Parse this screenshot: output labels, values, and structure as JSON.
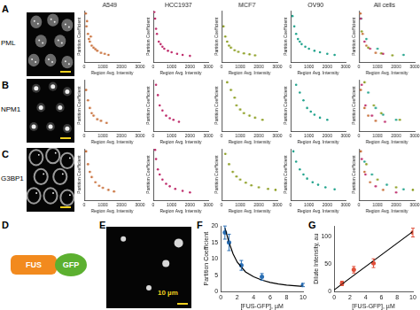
{
  "panel_labels": [
    "A",
    "B",
    "C",
    "D",
    "E",
    "F",
    "G"
  ],
  "rows": [
    {
      "label": "PML"
    },
    {
      "label": "NPM1"
    },
    {
      "label": "G3BP1"
    }
  ],
  "construct": [
    "FUS",
    "GFP"
  ],
  "scale_bar": "10 µm",
  "chart_data": [
    {
      "type": "scatter",
      "title": "A549",
      "x_label": "Region Avg. Intensity",
      "y_label": "Partition Coefficient",
      "xlim": [
        0,
        3000
      ],
      "xticks": [
        0,
        1000,
        2000,
        3000
      ],
      "ylim": [
        0,
        10
      ],
      "tick_labels": "x",
      "grid": false,
      "series": [
        {
          "color": "#c9713c",
          "x": [
            80,
            120,
            150,
            200,
            250,
            300,
            350,
            400,
            500,
            600,
            700,
            900,
            1100,
            1300
          ],
          "values": [
            9.5,
            7,
            8,
            5.5,
            4.5,
            4,
            5,
            3.2,
            2.8,
            2.5,
            2.2,
            1.8,
            1.6,
            1.4
          ]
        }
      ]
    },
    {
      "type": "scatter",
      "title": "HCC1937",
      "x_label": "Region Avg. Intensity",
      "y_label": "Partition Coefficient",
      "xlim": [
        0,
        3000
      ],
      "xticks": [
        0,
        1000,
        2000,
        3000
      ],
      "ylim": [
        0,
        10
      ],
      "tick_labels": "x",
      "grid": false,
      "series": [
        {
          "color": "#c0306e",
          "x": [
            60,
            100,
            150,
            200,
            300,
            400,
            500,
            600,
            800,
            1000,
            1300,
            1600,
            2000
          ],
          "values": [
            9.8,
            8.5,
            6.5,
            5.5,
            4,
            3.5,
            3,
            2.6,
            2.2,
            1.9,
            1.6,
            1.4,
            1.2
          ]
        }
      ]
    },
    {
      "type": "scatter",
      "title": "MCF7",
      "x_label": "Region Avg. Intensity",
      "y_label": "Partition Coefficient",
      "xlim": [
        0,
        3000
      ],
      "xticks": [
        0,
        1000,
        2000,
        3000
      ],
      "ylim": [
        0,
        10
      ],
      "tick_labels": "x",
      "grid": false,
      "series": [
        {
          "color": "#8c9e22",
          "x": [
            100,
            200,
            300,
            400,
            500,
            700,
            900,
            1200,
            1500,
            1800
          ],
          "values": [
            7,
            5,
            4,
            3.2,
            2.8,
            2.3,
            2,
            1.7,
            1.5,
            1.3
          ]
        }
      ]
    },
    {
      "type": "scatter",
      "title": "OV90",
      "x_label": "Region Avg. Intensity",
      "y_label": "Partition Coefficient",
      "xlim": [
        0,
        3000
      ],
      "xticks": [
        0,
        1000,
        2000,
        3000
      ],
      "ylim": [
        0,
        10
      ],
      "tick_labels": "x",
      "grid": false,
      "series": [
        {
          "color": "#24a48e",
          "x": [
            100,
            200,
            300,
            400,
            500,
            600,
            800,
            1000,
            1300,
            1600,
            2000,
            2400
          ],
          "values": [
            9,
            7,
            5.5,
            4.5,
            4,
            3.5,
            3,
            2.6,
            2.2,
            1.9,
            1.6,
            1.4
          ]
        }
      ]
    },
    {
      "type": "scatter",
      "title": "All cells",
      "x_label": "Region Avg. Intensity",
      "y_label": "Partition Coefficient",
      "xlim": [
        0,
        3000
      ],
      "xticks": [
        0,
        1000,
        2000,
        3000
      ],
      "ylim": [
        0,
        10
      ],
      "tick_labels": "x",
      "grid": false,
      "series": [
        {
          "color": "#c9713c",
          "x": [
            80,
            200,
            400,
            900
          ],
          "values": [
            9.5,
            5.5,
            3.2,
            1.8
          ]
        },
        {
          "color": "#c0306e",
          "x": [
            100,
            300,
            600,
            1300
          ],
          "values": [
            8.5,
            4,
            2.6,
            1.6
          ]
        },
        {
          "color": "#8c9e22",
          "x": [
            150,
            500,
            1200,
            1800
          ],
          "values": [
            6,
            2.8,
            1.7,
            1.3
          ]
        },
        {
          "color": "#24a48e",
          "x": [
            120,
            400,
            1000,
            2400
          ],
          "values": [
            8.5,
            4.5,
            2.6,
            1.4
          ]
        }
      ]
    },
    {
      "type": "scatter",
      "x_label": "Region Avg. Intensity",
      "y_label": "Partition Coefficient",
      "xlim": [
        0,
        3000
      ],
      "xticks": [
        0,
        1000,
        2000,
        3000
      ],
      "ylim": [
        0,
        10
      ],
      "tick_labels": "x",
      "grid": false,
      "series": [
        {
          "color": "#c9713c",
          "x": [
            100,
            200,
            300,
            400,
            500,
            700,
            900,
            1200
          ],
          "values": [
            8,
            6,
            4.5,
            3.5,
            3,
            2.3,
            2,
            1.6
          ]
        }
      ]
    },
    {
      "type": "scatter",
      "x_label": "Region Avg. Intensity",
      "y_label": "Partition Coefficient",
      "xlim": [
        0,
        3000
      ],
      "xticks": [
        0,
        1000,
        2000,
        3000
      ],
      "ylim": [
        0,
        10
      ],
      "tick_labels": "x",
      "grid": false,
      "series": [
        {
          "color": "#c0306e",
          "x": [
            150,
            250,
            350,
            500,
            700,
            900,
            1100,
            1400
          ],
          "values": [
            9,
            7,
            5,
            4,
            3,
            2.5,
            2.2,
            1.8
          ]
        }
      ]
    },
    {
      "type": "scatter",
      "x_label": "Region Avg. Intensity",
      "y_label": "Partition Coefficient",
      "xlim": [
        0,
        3000
      ],
      "xticks": [
        0,
        1000,
        2000,
        3000
      ],
      "ylim": [
        0,
        10
      ],
      "tick_labels": "x",
      "grid": false,
      "series": [
        {
          "color": "#8c9e22",
          "x": [
            300,
            500,
            700,
            800,
            1000,
            1200,
            1500,
            1800,
            2200
          ],
          "values": [
            9.5,
            8,
            6.5,
            5,
            4.2,
            3.5,
            3,
            2.6,
            2.2
          ]
        }
      ]
    },
    {
      "type": "scatter",
      "x_label": "Region Avg. Intensity",
      "y_label": "Partition Coefficient",
      "xlim": [
        0,
        3000
      ],
      "xticks": [
        0,
        1000,
        2000,
        3000
      ],
      "ylim": [
        0,
        10
      ],
      "tick_labels": "x",
      "grid": false,
      "series": [
        {
          "color": "#24a48e",
          "x": [
            300,
            500,
            700,
            900,
            1100,
            1300,
            1600,
            2000
          ],
          "values": [
            9,
            7.5,
            6,
            4.5,
            3.8,
            3.2,
            2.6,
            2.2
          ]
        }
      ]
    },
    {
      "type": "scatter",
      "x_label": "Region Avg. Intensity",
      "y_label": "Partition Coefficient",
      "xlim": [
        0,
        3000
      ],
      "xticks": [
        0,
        1000,
        2000,
        3000
      ],
      "ylim": [
        0,
        10
      ],
      "tick_labels": "x",
      "grid": false,
      "series": [
        {
          "color": "#c9713c",
          "x": [
            100,
            300,
            500,
            900
          ],
          "values": [
            8,
            4.5,
            3,
            2
          ]
        },
        {
          "color": "#c0306e",
          "x": [
            150,
            350,
            700,
            1400
          ],
          "values": [
            9,
            5,
            3,
            1.8
          ]
        },
        {
          "color": "#8c9e22",
          "x": [
            300,
            800,
            1200,
            2200
          ],
          "values": [
            9.5,
            5,
            3.5,
            2.2
          ]
        },
        {
          "color": "#24a48e",
          "x": [
            500,
            900,
            1300,
            2000
          ],
          "values": [
            7.5,
            4.5,
            3.2,
            2.2
          ]
        }
      ]
    },
    {
      "type": "scatter",
      "x_label": "Region Avg. Intensity",
      "y_label": "Partition Coefficient",
      "xlim": [
        0,
        3000
      ],
      "xticks": [
        0,
        1000,
        2000,
        3000
      ],
      "ylim": [
        0,
        10
      ],
      "tick_labels": "x",
      "grid": false,
      "series": [
        {
          "color": "#c9713c",
          "x": [
            100,
            200,
            300,
            400,
            600,
            800,
            1000,
            1300,
            1600
          ],
          "values": [
            9.5,
            7,
            5.5,
            4.5,
            3.5,
            2.8,
            2.4,
            2,
            1.7
          ]
        }
      ]
    },
    {
      "type": "scatter",
      "x_label": "Region Avg. Intensity",
      "y_label": "Partition Coefficient",
      "xlim": [
        0,
        3000
      ],
      "xticks": [
        0,
        1000,
        2000,
        3000
      ],
      "ylim": [
        0,
        10
      ],
      "tick_labels": "x",
      "grid": false,
      "series": [
        {
          "color": "#c0306e",
          "x": [
            100,
            150,
            250,
            350,
            500,
            700,
            900,
            1200,
            1600,
            2000
          ],
          "values": [
            9.8,
            8,
            6,
            5,
            4,
            3.2,
            2.7,
            2.2,
            1.8,
            1.5
          ]
        }
      ]
    },
    {
      "type": "scatter",
      "x_label": "Region Avg. Intensity",
      "y_label": "Partition Coefficient",
      "xlim": [
        0,
        3000
      ],
      "xticks": [
        0,
        1000,
        2000,
        3000
      ],
      "ylim": [
        0,
        10
      ],
      "tick_labels": "x",
      "grid": false,
      "series": [
        {
          "color": "#8c9e22",
          "x": [
            200,
            400,
            600,
            800,
            1000,
            1300,
            1600,
            2000,
            2500,
            2900
          ],
          "values": [
            9,
            7,
            5.5,
            4.6,
            4,
            3.4,
            2.9,
            2.5,
            2.2,
            2
          ]
        }
      ]
    },
    {
      "type": "scatter",
      "x_label": "Region Avg. Intensity",
      "y_label": "Partition Coefficient",
      "xlim": [
        0,
        3000
      ],
      "xticks": [
        0,
        1000,
        2000,
        3000
      ],
      "ylim": [
        0,
        10
      ],
      "tick_labels": "x",
      "grid": false,
      "series": [
        {
          "color": "#24a48e",
          "x": [
            150,
            300,
            500,
            700,
            900,
            1200,
            1500,
            1900,
            2400
          ],
          "values": [
            9.5,
            7.5,
            6,
            5,
            4.2,
            3.5,
            3,
            2.5,
            2.1
          ]
        }
      ]
    },
    {
      "type": "scatter",
      "x_label": "Region Avg. Intensity",
      "y_label": "Partition Coefficient",
      "xlim": [
        0,
        3000
      ],
      "xticks": [
        0,
        1000,
        2000,
        3000
      ],
      "ylim": [
        0,
        10
      ],
      "tick_labels": "x",
      "grid": false,
      "series": [
        {
          "color": "#c9713c",
          "x": [
            100,
            300,
            600,
            1300
          ],
          "values": [
            9.5,
            5.5,
            3.5,
            2
          ]
        },
        {
          "color": "#c0306e",
          "x": [
            150,
            350,
            900,
            2000
          ],
          "values": [
            8,
            5,
            2.7,
            1.5
          ]
        },
        {
          "color": "#8c9e22",
          "x": [
            400,
            1000,
            2000,
            2900
          ],
          "values": [
            7,
            4,
            2.5,
            2
          ]
        },
        {
          "color": "#24a48e",
          "x": [
            300,
            700,
            1500,
            2400
          ],
          "values": [
            7.5,
            5,
            3,
            2.1
          ]
        }
      ]
    },
    {
      "type": "scatter",
      "x_label": "[FUS-GFP], µM",
      "y_label": "Partition Coefficient",
      "xlim": [
        0,
        10
      ],
      "xticks": [
        0,
        2,
        4,
        6,
        8,
        10
      ],
      "ylim": [
        0,
        20
      ],
      "yticks": [
        0,
        5,
        10,
        15,
        20
      ],
      "grid": false,
      "series": [
        {
          "type": "line",
          "color": "#000000",
          "x": [
            0.5,
            1,
            1.5,
            2,
            3,
            4,
            5,
            6,
            7,
            8,
            9,
            10
          ],
          "values": [
            19.5,
            15,
            11.5,
            9,
            6,
            4.5,
            3.5,
            2.8,
            2.3,
            2,
            1.8,
            1.6
          ]
        },
        {
          "type": "scatter",
          "color": "#2a6fb5",
          "x": [
            0.5,
            1,
            2.5,
            5,
            10
          ],
          "values": [
            18,
            15,
            8,
            4.5,
            2
          ],
          "errors": [
            2,
            2.5,
            1.5,
            1,
            0.5
          ]
        }
      ]
    },
    {
      "type": "scatter",
      "x_label": "[FUS-GFP], µM",
      "y_label": "Dilute Intensity, au",
      "xlim": [
        0,
        10
      ],
      "xticks": [
        0,
        2,
        4,
        6,
        8,
        10
      ],
      "ylim": [
        0,
        120
      ],
      "yticks": [
        0,
        50,
        100
      ],
      "grid": false,
      "series": [
        {
          "type": "line",
          "color": "#000000",
          "x": [
            0,
            10
          ],
          "values": [
            3,
            110
          ]
        },
        {
          "type": "scatter",
          "color": "#e0503a",
          "x": [
            1,
            2.5,
            5,
            10
          ],
          "values": [
            15,
            40,
            52,
            108
          ],
          "errors": [
            4,
            6,
            8,
            8
          ]
        }
      ]
    }
  ]
}
